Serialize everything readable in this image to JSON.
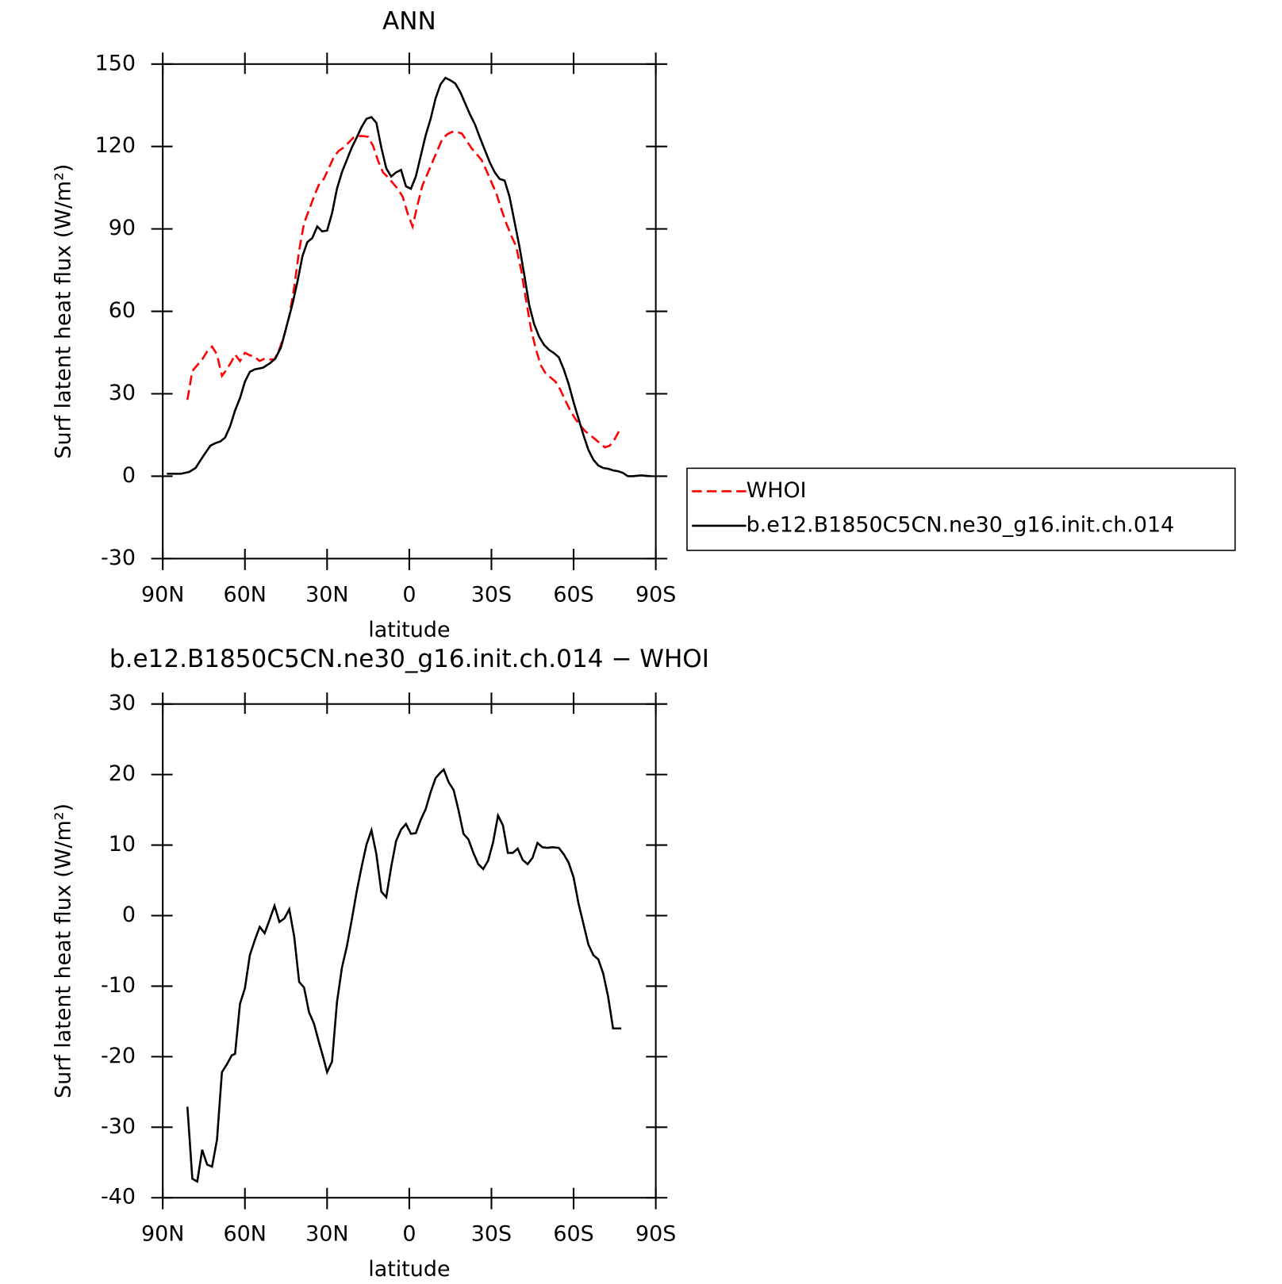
{
  "chart_data": [
    {
      "type": "line",
      "title": "ANN",
      "xlabel": "latitude",
      "ylabel": "Surf latent heat flux (W/m²)",
      "xlim": [
        90,
        -90
      ],
      "xticks": [
        {
          "value": 90,
          "label": "90N"
        },
        {
          "value": 60,
          "label": "60N"
        },
        {
          "value": 30,
          "label": "30N"
        },
        0,
        {
          "value": -30,
          "label": "30S"
        },
        {
          "value": -60,
          "label": "60S"
        },
        {
          "value": -90,
          "label": "90S"
        }
      ],
      "ylim": [
        -30,
        150
      ],
      "yticks": [
        -30,
        0,
        30,
        60,
        90,
        120,
        150
      ],
      "legend": "right",
      "series": [
        {
          "name": "WHOI",
          "color": "#ff0000",
          "line_style": "dashed",
          "x": [
            81,
            79.2,
            77.4,
            75.6,
            73.8,
            72,
            70.2,
            68.4,
            66.6,
            64.8,
            63.6,
            61.8,
            60,
            58.2,
            56.4,
            54.6,
            52.8,
            51,
            49.2,
            47.4,
            45.6,
            43.8,
            42,
            40.2,
            38.4,
            36.6,
            34.8,
            33,
            31.2,
            29.4,
            27.6,
            25.8,
            24,
            22.2,
            20.4,
            18.6,
            16.8,
            15,
            13.2,
            11.4,
            9.6,
            7.8,
            6,
            4.2,
            2.4,
            0.6,
            -1.2,
            -3,
            -4.8,
            -6.6,
            -8.4,
            -10.2,
            -12,
            -13.8,
            -15.6,
            -17.4,
            -19.2,
            -21,
            -22.8,
            -24.6,
            -26.4,
            -28.2,
            -30,
            -31.8,
            -33.6,
            -35.4,
            -37.2,
            -39,
            -40.8,
            -42.6,
            -44.4,
            -46.2,
            -48,
            -49.8,
            -51.6,
            -53.4,
            -55.2,
            -57,
            -58.8,
            -60.6,
            -62.4,
            -64.2,
            -66,
            -67.8,
            -69.6,
            -71.4,
            -73.2,
            -75,
            -77.4
          ],
          "values": [
            27.8,
            38.3,
            40.4,
            42.5,
            45.4,
            47.2,
            44.3,
            36.5,
            38.9,
            41.9,
            44.3,
            41.9,
            44.9,
            44.0,
            43.4,
            41.9,
            42.8,
            42.5,
            42.5,
            46.3,
            51.4,
            58.3,
            68.8,
            82.2,
            92.1,
            96.9,
            101.7,
            106.1,
            108.2,
            112.1,
            116.0,
            118.4,
            119.6,
            121.4,
            123.2,
            123.8,
            123.8,
            123.5,
            120.2,
            114.8,
            110.6,
            108.8,
            106.7,
            104.6,
            101.7,
            95.7,
            90.9,
            98.7,
            105.8,
            110.0,
            114.2,
            118.4,
            122.6,
            124.4,
            125.3,
            125.3,
            124.7,
            122.0,
            119.3,
            117.2,
            115.1,
            111.2,
            107.0,
            102.9,
            97.2,
            92.1,
            87.6,
            83.7,
            75.3,
            64.3,
            53.8,
            46.3,
            40.4,
            37.4,
            35.9,
            34.4,
            31.4,
            27.5,
            23.9,
            20.9,
            18.5,
            16.4,
            15.0,
            13.5,
            12.0,
            10.5,
            11.1,
            13.5,
            17.9
          ]
        },
        {
          "name": "b.e12.B1850C5CN.ne30_g16.init.ch.014",
          "color": "#000000",
          "line_style": "solid",
          "x": [
            88.5,
            83.4,
            80.4,
            78,
            75.3,
            72.6,
            70.8,
            69,
            67.2,
            65.4,
            63.6,
            61.8,
            60,
            58.2,
            56.4,
            53.4,
            51,
            48.9,
            46.8,
            45,
            42.6,
            40.8,
            39,
            37.2,
            35.4,
            33.6,
            31.8,
            30,
            28.2,
            26.4,
            24.6,
            22.8,
            21,
            19.2,
            17.4,
            15.6,
            13.8,
            12,
            10.2,
            8.4,
            6.6,
            4.8,
            3,
            1.2,
            -0.6,
            -2.4,
            -4.2,
            -6,
            -7.8,
            -9.6,
            -11.4,
            -13.2,
            -15,
            -16.8,
            -18.6,
            -20.4,
            -22.2,
            -24,
            -25.8,
            -27.6,
            -29.4,
            -31.2,
            -33,
            -34.8,
            -36.6,
            -38.4,
            -40.2,
            -42,
            -43.8,
            -45.6,
            -47.4,
            -49.2,
            -51,
            -52.8,
            -54.6,
            -56.4,
            -58.2,
            -60,
            -61.8,
            -63.6,
            -65.4,
            -67.2,
            -69,
            -70.8,
            -72.6,
            -74.4,
            -76.2,
            -78,
            -79.8,
            -81.6,
            -84.6,
            -88.2
          ],
          "values": [
            0.9,
            0.9,
            1.5,
            3.0,
            7.2,
            11.1,
            12.0,
            12.6,
            14.1,
            18.2,
            23.9,
            28.4,
            34.4,
            38.0,
            38.9,
            39.5,
            41.0,
            42.8,
            47.0,
            53.8,
            62.8,
            70.9,
            80.1,
            85.2,
            86.7,
            90.9,
            89.1,
            89.4,
            95.7,
            104.6,
            110.6,
            115.1,
            119.6,
            123.2,
            127.1,
            130.1,
            130.7,
            128.6,
            119.6,
            112.1,
            109.1,
            110.6,
            111.5,
            105.5,
            104.6,
            109.1,
            116.6,
            124.1,
            130.1,
            137.5,
            142.6,
            145.0,
            144.1,
            142.9,
            139.9,
            135.7,
            131.6,
            128.0,
            123.2,
            118.7,
            114.2,
            110.6,
            108.2,
            107.6,
            101.7,
            92.7,
            83.7,
            73.2,
            62.2,
            55.3,
            50.8,
            47.8,
            46.0,
            44.8,
            43.3,
            38.9,
            33.5,
            26.9,
            20.9,
            14.9,
            9.6,
            6.0,
            3.9,
            3.0,
            2.7,
            2.1,
            1.8,
            1.2,
            0,
            0,
            0.3,
            0
          ]
        }
      ]
    },
    {
      "type": "line",
      "title": "b.e12.B1850C5CN.ne30_g16.init.ch.014 − WHOI",
      "xlabel": "latitude",
      "ylabel": "Surf latent heat flux (W/m²)",
      "xlim": [
        90,
        -90
      ],
      "xticks": [
        {
          "value": 90,
          "label": "90N"
        },
        {
          "value": 60,
          "label": "60N"
        },
        {
          "value": 30,
          "label": "30N"
        },
        0,
        {
          "value": -30,
          "label": "30S"
        },
        {
          "value": -60,
          "label": "60S"
        },
        {
          "value": -90,
          "label": "90S"
        }
      ],
      "ylim": [
        -40,
        30
      ],
      "yticks": [
        -40,
        -30,
        -20,
        -10,
        0,
        10,
        20,
        30
      ],
      "series": [
        {
          "color": "#000000",
          "line_style": "solid",
          "x": [
            81,
            79.2,
            77.4,
            75.6,
            73.8,
            72,
            70.2,
            68.4,
            66.6,
            64.8,
            63.6,
            61.8,
            60,
            58.2,
            56.4,
            54.6,
            52.8,
            51,
            49.2,
            47.4,
            45.6,
            43.8,
            42,
            40.2,
            38.4,
            36.6,
            34.8,
            33,
            31.2,
            30,
            28.2,
            26.4,
            24.6,
            22.8,
            21,
            19.2,
            17.4,
            15.6,
            13.8,
            12,
            10.2,
            8.4,
            6.6,
            4.8,
            3,
            1.2,
            -0.6,
            -2.4,
            -4.2,
            -6,
            -7.8,
            -9.6,
            -11.4,
            -12.6,
            -14.4,
            -16.2,
            -18,
            -19.8,
            -21.6,
            -23.4,
            -25.2,
            -27,
            -28.8,
            -30.6,
            -32.4,
            -34.2,
            -36,
            -37.8,
            -39.6,
            -41.4,
            -43.2,
            -45,
            -46.8,
            -48.6,
            -50.4,
            -52.2,
            -54.6,
            -56.4,
            -58.2,
            -60,
            -61.8,
            -63.6,
            -65.4,
            -67.2,
            -69,
            -70.8,
            -72.6,
            -74.4,
            -77.4
          ],
          "values": [
            -27.1,
            -37.3,
            -37.7,
            -33.2,
            -35.3,
            -35.6,
            -31.8,
            -22.2,
            -21.1,
            -19.8,
            -19.6,
            -12.5,
            -10.3,
            -5.6,
            -3.5,
            -1.6,
            -2.5,
            -0.6,
            1.4,
            -0.9,
            -0.4,
            0.9,
            -3.0,
            -9.4,
            -10.2,
            -13.7,
            -15.3,
            -17.9,
            -20.4,
            -22.2,
            -20.7,
            -12.3,
            -7.4,
            -4.4,
            -0.6,
            3.4,
            6.9,
            10.1,
            12.1,
            8.7,
            3.4,
            2.6,
            6.9,
            10.6,
            12.2,
            13.0,
            11.6,
            11.7,
            13.6,
            15.1,
            17.5,
            19.5,
            20.3,
            20.7,
            18.9,
            17.8,
            14.9,
            11.6,
            10.8,
            8.9,
            7.3,
            6.6,
            7.8,
            10.4,
            14.2,
            12.8,
            8.9,
            8.9,
            9.5,
            7.9,
            7.3,
            8.2,
            10.3,
            9.7,
            9.6,
            9.7,
            9.6,
            8.7,
            7.5,
            5.4,
            1.7,
            -1.2,
            -4.1,
            -5.6,
            -6.2,
            -8.2,
            -11.5,
            -16.0,
            -16.0
          ]
        }
      ]
    }
  ]
}
